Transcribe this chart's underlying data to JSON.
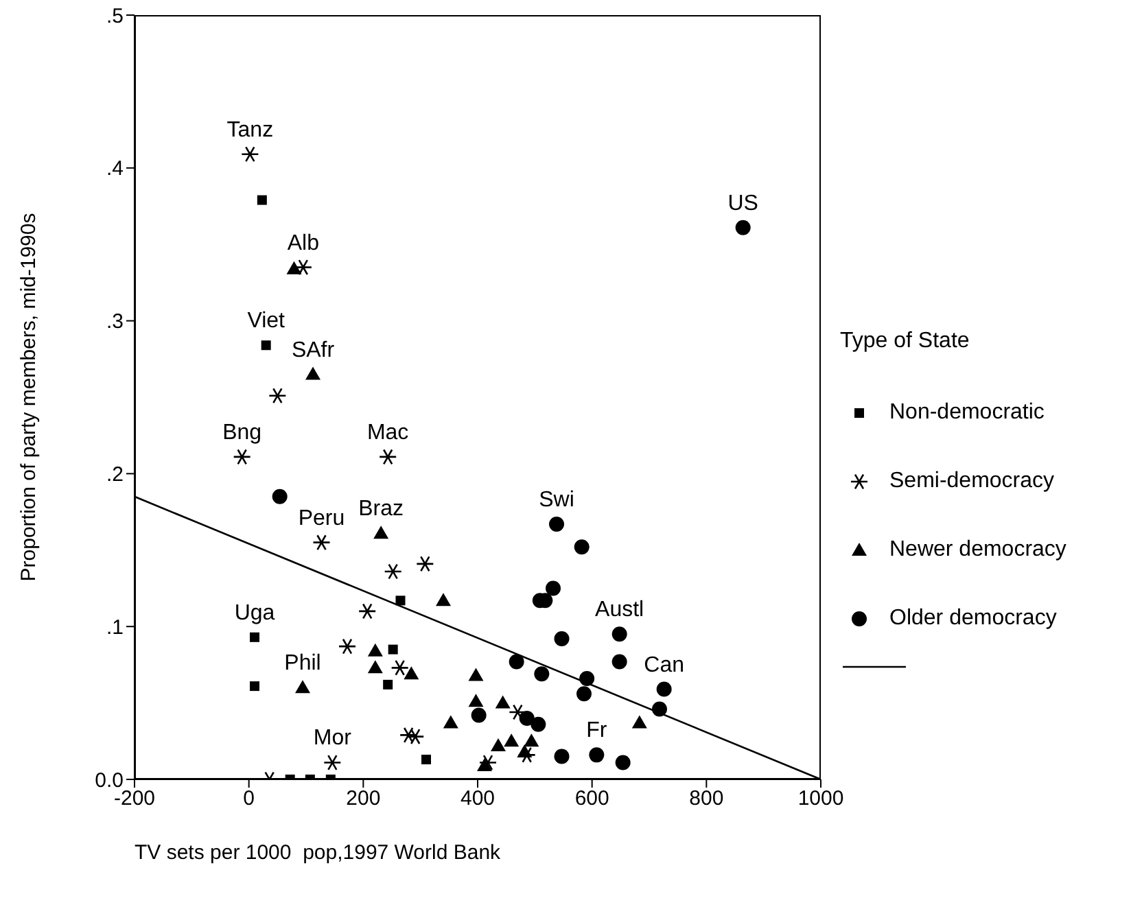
{
  "chart_data": {
    "type": "scatter",
    "xlabel": "TV sets per 1000  pop,1997 World Bank",
    "ylabel": "Proportion of party members, mid-1990s",
    "legend_title": "Type of State",
    "legend": "right",
    "xlim": [
      -200,
      1000
    ],
    "xticks": [
      -200,
      0,
      200,
      400,
      600,
      800,
      1000
    ],
    "ylim": [
      0,
      0.5
    ],
    "yticks": [
      {
        "value": 0,
        "label": "0.0"
      },
      {
        "value": 0.1,
        "label": ".1"
      },
      {
        "value": 0.2,
        "label": ".2"
      },
      {
        "value": 0.3,
        "label": ".3"
      },
      {
        "value": 0.4,
        "label": ".4"
      },
      {
        "value": 0.5,
        "label": ".5"
      }
    ],
    "series": [
      {
        "name": "Non-democratic",
        "color": "#000000",
        "marker": "square",
        "x": [
          23,
          30,
          265,
          10,
          252,
          243,
          10,
          310,
          72,
          107,
          143
        ],
        "values": [
          0.379,
          0.284,
          0.117,
          0.093,
          0.085,
          0.062,
          0.061,
          0.013,
          0,
          0,
          0
        ]
      },
      {
        "name": "Semi-democracy",
        "color": "#000000",
        "marker": "cross",
        "x": [
          2,
          95,
          50,
          -12,
          243,
          127,
          252,
          308,
          207,
          172,
          264,
          279,
          291,
          146,
          418,
          470,
          486,
          36
        ],
        "values": [
          0.409,
          0.335,
          0.251,
          0.211,
          0.211,
          0.155,
          0.136,
          0.141,
          0.11,
          0.087,
          0.073,
          0.029,
          0.028,
          0.011,
          0.011,
          0.044,
          0.016,
          0
        ]
      },
      {
        "name": "Newer democracy",
        "color": "#000000",
        "marker": "triangle",
        "x": [
          79,
          112,
          231,
          340,
          221,
          221,
          284,
          94,
          397,
          397,
          444,
          353,
          436,
          412,
          683,
          459,
          494,
          482
        ],
        "values": [
          0.334,
          0.265,
          0.161,
          0.117,
          0.084,
          0.073,
          0.069,
          0.06,
          0.068,
          0.051,
          0.05,
          0.037,
          0.022,
          0.009,
          0.037,
          0.025,
          0.025,
          0.018
        ]
      },
      {
        "name": "Older democracy",
        "color": "#000000",
        "marker": "circle",
        "x": [
          54,
          402,
          538,
          582,
          532,
          509,
          518,
          648,
          547,
          648,
          468,
          512,
          591,
          586,
          726,
          718,
          486,
          506,
          547,
          608,
          654,
          864
        ],
        "values": [
          0.185,
          0.042,
          0.167,
          0.152,
          0.125,
          0.117,
          0.117,
          0.095,
          0.092,
          0.077,
          0.077,
          0.069,
          0.066,
          0.056,
          0.059,
          0.046,
          0.04,
          0.036,
          0.015,
          0.016,
          0.011,
          0.361
        ]
      },
      {
        "type": "line",
        "color": "#000000",
        "marker": "none",
        "x": [
          -200,
          1000
        ],
        "values": [
          0.185,
          0
        ]
      }
    ],
    "annotations": [
      {
        "text": "Tanz",
        "x": 2,
        "y": 0.409
      },
      {
        "text": "Alb",
        "x": 95,
        "y": 0.335
      },
      {
        "text": "Viet",
        "x": 30,
        "y": 0.284
      },
      {
        "text": "SAfr",
        "x": 112,
        "y": 0.265
      },
      {
        "text": "Bng",
        "x": -12,
        "y": 0.211
      },
      {
        "text": "Mac",
        "x": 243,
        "y": 0.211
      },
      {
        "text": "Peru",
        "x": 127,
        "y": 0.155
      },
      {
        "text": "Braz",
        "x": 231,
        "y": 0.161
      },
      {
        "text": "Uga",
        "x": 10,
        "y": 0.093
      },
      {
        "text": "Phil",
        "x": 94,
        "y": 0.06
      },
      {
        "text": "Mor",
        "x": 146,
        "y": 0.011
      },
      {
        "text": "Swi",
        "x": 538,
        "y": 0.167
      },
      {
        "text": "Austl",
        "x": 648,
        "y": 0.095
      },
      {
        "text": "Can",
        "x": 726,
        "y": 0.059
      },
      {
        "text": "Fr",
        "x": 608,
        "y": 0.016
      },
      {
        "text": "US",
        "x": 864,
        "y": 0.361
      }
    ]
  }
}
